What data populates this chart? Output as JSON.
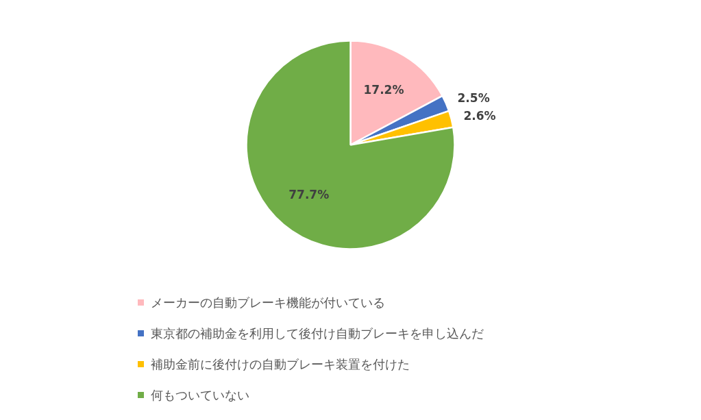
{
  "chart_data": {
    "type": "pie",
    "categories": [
      "メーカーの自動ブレーキ機能が付いている",
      "東京都の補助金を利用して後付け自動ブレーキを申し込んだ",
      "補助金前に後付けの自動ブレーキ装置を付けた",
      "何もついていない"
    ],
    "values": [
      17.2,
      2.5,
      2.6,
      77.7
    ],
    "colors": [
      "#ffb9bd",
      "#4472c4",
      "#ffc000",
      "#70ad47"
    ],
    "value_labels": [
      "17.2%",
      "2.5%",
      "2.6%",
      "77.7%"
    ],
    "legend": "bottom"
  }
}
